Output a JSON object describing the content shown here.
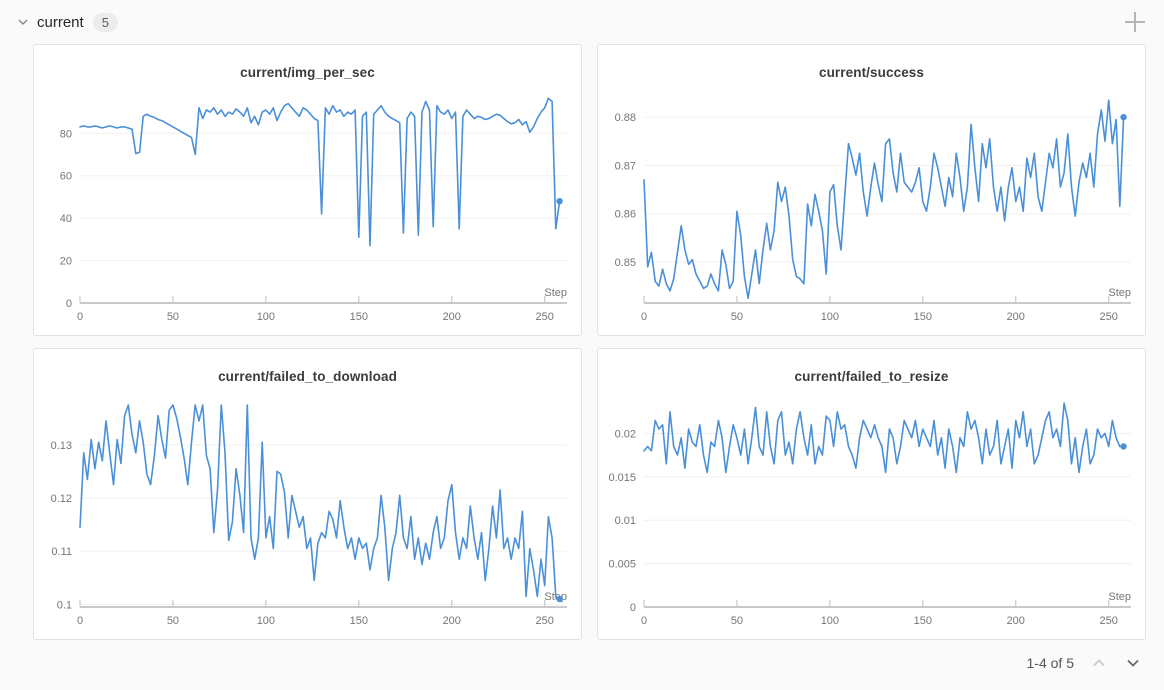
{
  "header": {
    "section_label": "current",
    "count_badge": "5"
  },
  "footer": {
    "pagination_text": "1-4 of 5"
  },
  "colors": {
    "line": "#4a90d9",
    "page_bg": "#fafafa",
    "panel_bg": "#ffffff",
    "panel_border": "#e3e3e3",
    "grid": "#f0f0f0",
    "axis": "#c9c9c9",
    "tick_text": "#757575",
    "title_text": "#3b3b3b",
    "chevron_disabled": "#c9c9c9",
    "chevron_enabled": "#666666",
    "plus_icon": "#b5b5b5"
  },
  "chart_data": [
    {
      "type": "line",
      "title": "current/img_per_sec",
      "xlabel": "Step",
      "x_ticks": [
        0,
        50,
        100,
        150,
        200,
        250
      ],
      "xlim": [
        0,
        262
      ],
      "ylim": [
        0,
        99
      ],
      "y_ticks": [
        0,
        20,
        40,
        60,
        80
      ],
      "y_tick_labels": [
        "0",
        "20",
        "40",
        "60",
        "80"
      ],
      "x_start": 0,
      "x_step": 2,
      "end_marker": true,
      "y": [
        83,
        83.5,
        83,
        83,
        83.5,
        83,
        82.5,
        83,
        83.5,
        83,
        82.5,
        83,
        83,
        82.5,
        82,
        70.5,
        71,
        88,
        89,
        88,
        87.5,
        86.5,
        86,
        85,
        84,
        83,
        82,
        81,
        80,
        79,
        78,
        70,
        92,
        87,
        91,
        90,
        92,
        89,
        91,
        88,
        90,
        89,
        91.5,
        90,
        88,
        92,
        85,
        88,
        84,
        90,
        91,
        89,
        92,
        86,
        90,
        93,
        94,
        92,
        90,
        88,
        92,
        91,
        89,
        87,
        86,
        42,
        92,
        89,
        93,
        90,
        91,
        88,
        90,
        89,
        91,
        31,
        88,
        90,
        27,
        89,
        91,
        93,
        90,
        88,
        87,
        86,
        85,
        33,
        87,
        90,
        88,
        32,
        90,
        95,
        91,
        36,
        93,
        90,
        89,
        91,
        87,
        90,
        35,
        88,
        91,
        89,
        87,
        88,
        87.5,
        86.5,
        87,
        88,
        89,
        88.5,
        87,
        85.5,
        84.5,
        85,
        86.5,
        84,
        85.5,
        80.5,
        83,
        87,
        90,
        92,
        96.5,
        95,
        35,
        48
      ]
    },
    {
      "type": "line",
      "title": "current/success",
      "xlabel": "Step",
      "x_ticks": [
        0,
        50,
        100,
        150,
        200,
        250
      ],
      "xlim": [
        0,
        262
      ],
      "ylim": [
        0.8415,
        0.885
      ],
      "y_ticks": [
        0.85,
        0.86,
        0.87,
        0.88
      ],
      "y_tick_labels": [
        "0.85",
        "0.86",
        "0.87",
        "0.88"
      ],
      "x_start": 0,
      "x_step": 2,
      "end_marker": true,
      "y": [
        0.867,
        0.849,
        0.852,
        0.846,
        0.845,
        0.8485,
        0.8455,
        0.844,
        0.8465,
        0.852,
        0.8575,
        0.8525,
        0.8495,
        0.8505,
        0.8475,
        0.846,
        0.8445,
        0.845,
        0.8475,
        0.8455,
        0.844,
        0.8525,
        0.8495,
        0.8445,
        0.846,
        0.8605,
        0.8555,
        0.847,
        0.8425,
        0.8475,
        0.8525,
        0.8455,
        0.8525,
        0.858,
        0.8525,
        0.8565,
        0.8665,
        0.8625,
        0.8655,
        0.8595,
        0.8505,
        0.847,
        0.8465,
        0.8455,
        0.862,
        0.8575,
        0.864,
        0.8605,
        0.8565,
        0.8475,
        0.8645,
        0.866,
        0.8575,
        0.8525,
        0.8635,
        0.8745,
        0.8715,
        0.868,
        0.8725,
        0.8645,
        0.8595,
        0.8655,
        0.8705,
        0.866,
        0.8625,
        0.8745,
        0.8755,
        0.8685,
        0.8645,
        0.8725,
        0.8665,
        0.8655,
        0.8645,
        0.8665,
        0.8695,
        0.8625,
        0.8605,
        0.8655,
        0.8725,
        0.8695,
        0.8655,
        0.8615,
        0.8675,
        0.8635,
        0.8725,
        0.8675,
        0.8605,
        0.8655,
        0.8785,
        0.8695,
        0.8625,
        0.8745,
        0.8695,
        0.8755,
        0.8655,
        0.8605,
        0.8655,
        0.8585,
        0.8655,
        0.8695,
        0.8625,
        0.8655,
        0.8605,
        0.8715,
        0.8675,
        0.8725,
        0.8635,
        0.8605,
        0.8665,
        0.8725,
        0.8695,
        0.8755,
        0.8655,
        0.8685,
        0.8765,
        0.8655,
        0.8595,
        0.8665,
        0.8705,
        0.8675,
        0.8725,
        0.8655,
        0.8765,
        0.8815,
        0.875,
        0.8835,
        0.8745,
        0.8795,
        0.8615,
        0.88
      ]
    },
    {
      "type": "line",
      "title": "current/failed_to_download",
      "xlabel": "Step",
      "x_ticks": [
        0,
        50,
        100,
        150,
        200,
        250
      ],
      "xlim": [
        0,
        262
      ],
      "ylim": [
        0.0995,
        0.139
      ],
      "y_ticks": [
        0.1,
        0.11,
        0.12,
        0.13
      ],
      "y_tick_labels": [
        "0.1",
        "0.11",
        "0.12",
        "0.13"
      ],
      "x_start": 0,
      "x_step": 2,
      "end_marker": true,
      "y": [
        0.1145,
        0.1285,
        0.1235,
        0.131,
        0.1255,
        0.1305,
        0.127,
        0.1345,
        0.1285,
        0.1225,
        0.131,
        0.1265,
        0.1355,
        0.1375,
        0.132,
        0.1285,
        0.1345,
        0.1305,
        0.1245,
        0.1225,
        0.128,
        0.1355,
        0.131,
        0.1275,
        0.1365,
        0.1375,
        0.135,
        0.1315,
        0.1275,
        0.1225,
        0.1305,
        0.1375,
        0.1345,
        0.1375,
        0.128,
        0.1255,
        0.1135,
        0.1215,
        0.1375,
        0.1285,
        0.112,
        0.1155,
        0.1255,
        0.1205,
        0.1135,
        0.1375,
        0.1125,
        0.1085,
        0.1125,
        0.1305,
        0.1125,
        0.1165,
        0.1105,
        0.125,
        0.1245,
        0.121,
        0.1125,
        0.1205,
        0.1175,
        0.1145,
        0.1165,
        0.1105,
        0.1125,
        0.1045,
        0.1115,
        0.1135,
        0.1125,
        0.1175,
        0.116,
        0.1125,
        0.1195,
        0.1145,
        0.1105,
        0.1125,
        0.1085,
        0.1125,
        0.1105,
        0.1115,
        0.1065,
        0.1105,
        0.1125,
        0.1205,
        0.1145,
        0.1045,
        0.1105,
        0.1135,
        0.1205,
        0.1125,
        0.1105,
        0.1165,
        0.1085,
        0.1125,
        0.1075,
        0.1115,
        0.1085,
        0.1135,
        0.1165,
        0.1105,
        0.1125,
        0.1195,
        0.1225,
        0.1135,
        0.1085,
        0.1125,
        0.1105,
        0.1185,
        0.1125,
        0.1085,
        0.1135,
        0.1045,
        0.1105,
        0.1185,
        0.1125,
        0.1215,
        0.1105,
        0.1125,
        0.1085,
        0.1125,
        0.1105,
        0.1175,
        0.1015,
        0.1105,
        0.1065,
        0.1015,
        0.1085,
        0.1035,
        0.1165,
        0.1125,
        0.1015,
        0.101
      ]
    },
    {
      "type": "line",
      "title": "current/failed_to_resize",
      "xlabel": "Step",
      "x_ticks": [
        0,
        50,
        100,
        150,
        200,
        250
      ],
      "xlim": [
        0,
        262
      ],
      "ylim": [
        0,
        0.0242
      ],
      "y_ticks": [
        0,
        0.005,
        0.01,
        0.015,
        0.02
      ],
      "y_tick_labels": [
        "0",
        "0.005",
        "0.01",
        "0.015",
        "0.02"
      ],
      "x_start": 0,
      "x_step": 2,
      "end_marker": true,
      "y": [
        0.018,
        0.0185,
        0.018,
        0.0215,
        0.0205,
        0.021,
        0.0165,
        0.0225,
        0.0185,
        0.0175,
        0.0195,
        0.016,
        0.0205,
        0.019,
        0.0185,
        0.021,
        0.0175,
        0.0155,
        0.019,
        0.0185,
        0.0215,
        0.0195,
        0.0155,
        0.0185,
        0.021,
        0.0195,
        0.0175,
        0.0205,
        0.0165,
        0.0195,
        0.023,
        0.0185,
        0.0175,
        0.0225,
        0.0185,
        0.0165,
        0.0215,
        0.0225,
        0.0175,
        0.019,
        0.0165,
        0.0205,
        0.0225,
        0.0195,
        0.0175,
        0.021,
        0.0165,
        0.0185,
        0.0175,
        0.022,
        0.0215,
        0.0185,
        0.0225,
        0.0205,
        0.021,
        0.0185,
        0.0175,
        0.016,
        0.0195,
        0.0215,
        0.0205,
        0.0195,
        0.021,
        0.0195,
        0.0185,
        0.0155,
        0.0205,
        0.0195,
        0.0165,
        0.0185,
        0.0215,
        0.0205,
        0.0195,
        0.0215,
        0.0185,
        0.0205,
        0.0195,
        0.0185,
        0.0215,
        0.0175,
        0.0195,
        0.016,
        0.0205,
        0.0185,
        0.0155,
        0.0195,
        0.0185,
        0.0225,
        0.0205,
        0.0215,
        0.0195,
        0.0165,
        0.0205,
        0.0175,
        0.0185,
        0.0215,
        0.0165,
        0.0185,
        0.0205,
        0.016,
        0.0215,
        0.0195,
        0.0225,
        0.0185,
        0.0205,
        0.0165,
        0.0175,
        0.0195,
        0.0215,
        0.0225,
        0.0195,
        0.0205,
        0.0185,
        0.0235,
        0.0215,
        0.0165,
        0.0195,
        0.0155,
        0.0185,
        0.0205,
        0.0165,
        0.0175,
        0.0205,
        0.0195,
        0.02,
        0.0185,
        0.0215,
        0.0195,
        0.0185,
        0.0185
      ]
    }
  ]
}
